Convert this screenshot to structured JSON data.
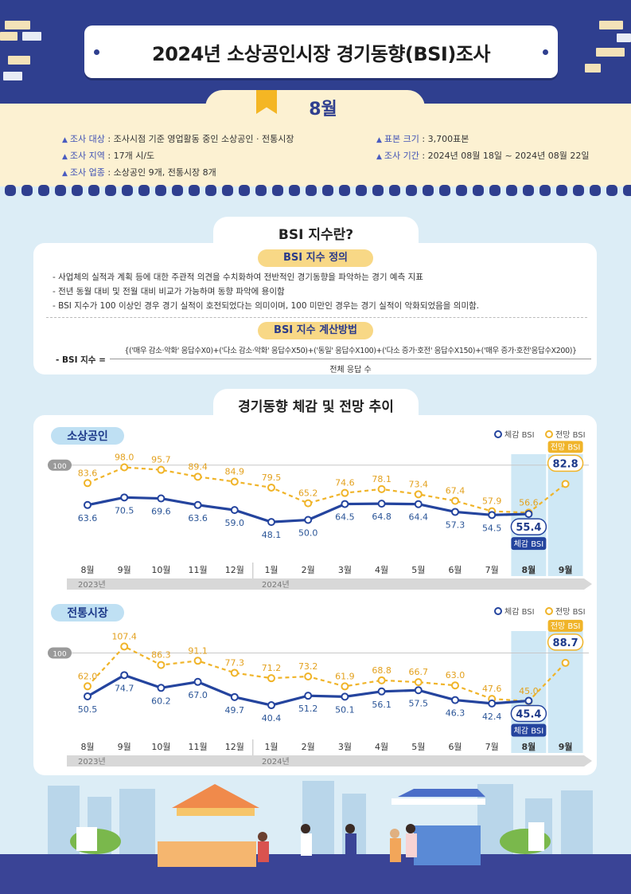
{
  "header": {
    "title": "2024년 소상공인시장 경기동향(BSI)조사",
    "month": "8월"
  },
  "survey": {
    "target_label": "조사 대상",
    "target_value": " : 조사시점 기준 영업활동 중인 소상공인 · 전통시장",
    "region_label": "조사 지역",
    "region_value": " : 17개 시/도",
    "industry_label": "조사 업종",
    "industry_value": " : 소상공인 9개, 전통시장 8개",
    "sample_label": "표본 크기",
    "sample_value": " : 3,700표본",
    "period_label": "조사 기간",
    "period_value": " : 2024년 08월 18일 ~ 2024년 08월 22일"
  },
  "bsi_info": {
    "tab": "BSI 지수란?",
    "def_title": "BSI 지수 정의",
    "def_lines": [
      "- 사업체의 실적과 계획 등에 대한 주관적 의견을 수치화하여 전반적인 경기동향을 파악하는 경기 예측 지표",
      "- 전년 동월 대비 및 전월 대비 비교가 가능하며 동향 파악에 용이함",
      "- BSI 지수가 100 이상인 경우 경기 실적이 호전되었다는 의미이며, 100 미만인 경우는 경기 실적이 악화되었음을 의미함."
    ],
    "calc_title": "BSI 지수 계산방법",
    "formula_label": "- BSI 지수 =",
    "formula_numerator": "{('매우 감소·악화' 응답수X0)+('다소 감소·악화' 응답수X50)+('동일' 응답수X100)+('다소 증가·호전' 응답수X150)+('매우 증가·호전'응답수X200)}",
    "formula_denominator": "전체 응답 수"
  },
  "trend_tab": "경기동향 체감 및 전망 추이",
  "chart_data": [
    {
      "type": "line",
      "title": "소상공인",
      "legend": [
        "체감 BSI",
        "전망 BSI"
      ],
      "baseline_label": "100",
      "baseline": 100,
      "categories": [
        "8월",
        "9월",
        "10월",
        "11월",
        "12월",
        "1월",
        "2월",
        "3월",
        "4월",
        "5월",
        "6월",
        "7월",
        "8월",
        "9월"
      ],
      "year_labels": [
        "2023년",
        "2024년"
      ],
      "series": [
        {
          "name": "체감 BSI",
          "values": [
            63.6,
            70.5,
            69.6,
            63.6,
            59.0,
            48.1,
            50.0,
            64.5,
            64.8,
            64.4,
            57.3,
            54.5,
            55.4,
            null
          ],
          "labels": [
            "63.6",
            "70.5",
            "69.6",
            "63.6",
            "59.0",
            "48.1",
            "50.0",
            "64.5",
            "64.8",
            "64.4",
            "57.3",
            "54.5",
            "55.4",
            ""
          ]
        },
        {
          "name": "전망 BSI",
          "values": [
            83.6,
            98.0,
            95.7,
            89.4,
            84.9,
            79.5,
            65.2,
            74.6,
            78.1,
            73.4,
            67.4,
            57.9,
            56.6,
            82.8
          ],
          "labels": [
            "83.6",
            "98.0",
            "95.7",
            "89.4",
            "84.9",
            "79.5",
            "65.2",
            "74.6",
            "78.1",
            "73.4",
            "67.4",
            "57.9",
            "56.6",
            "82.8"
          ]
        }
      ],
      "callout_actual": "체감 BSI",
      "callout_forecast": "전망 BSI",
      "ylim": [
        30,
        110
      ]
    },
    {
      "type": "line",
      "title": "전통시장",
      "legend": [
        "체감 BSI",
        "전망 BSI"
      ],
      "baseline_label": "100",
      "baseline": 100,
      "categories": [
        "8월",
        "9월",
        "10월",
        "11월",
        "12월",
        "1월",
        "2월",
        "3월",
        "4월",
        "5월",
        "6월",
        "7월",
        "8월",
        "9월"
      ],
      "year_labels": [
        "2023년",
        "2024년"
      ],
      "series": [
        {
          "name": "체감 BSI",
          "values": [
            50.5,
            74.7,
            60.2,
            67.0,
            49.7,
            40.4,
            51.2,
            50.1,
            56.1,
            57.5,
            46.3,
            42.4,
            45.4,
            null
          ],
          "labels": [
            "50.5",
            "74.7",
            "60.2",
            "67.0",
            "49.7",
            "40.4",
            "51.2",
            "50.1",
            "56.1",
            "57.5",
            "46.3",
            "42.4",
            "45.4",
            ""
          ]
        },
        {
          "name": "전망 BSI",
          "values": [
            62.0,
            107.4,
            86.3,
            91.1,
            77.3,
            71.2,
            73.2,
            61.9,
            68.8,
            66.7,
            63.0,
            47.6,
            45.0,
            88.7
          ],
          "labels": [
            "62.0",
            "107.4",
            "86.3",
            "91.1",
            "77.3",
            "71.2",
            "73.2",
            "61.9",
            "68.8",
            "66.7",
            "63.0",
            "47.6",
            "45.0",
            "88.7"
          ]
        }
      ],
      "callout_actual": "체감 BSI",
      "callout_forecast": "전망 BSI",
      "ylim": [
        25,
        125
      ]
    }
  ],
  "colors": {
    "navy": "#2f3f8f",
    "actual": "#24449e",
    "forecast": "#f0b429",
    "highlight": "#cfe8f5",
    "cream": "#fcf1d2"
  }
}
